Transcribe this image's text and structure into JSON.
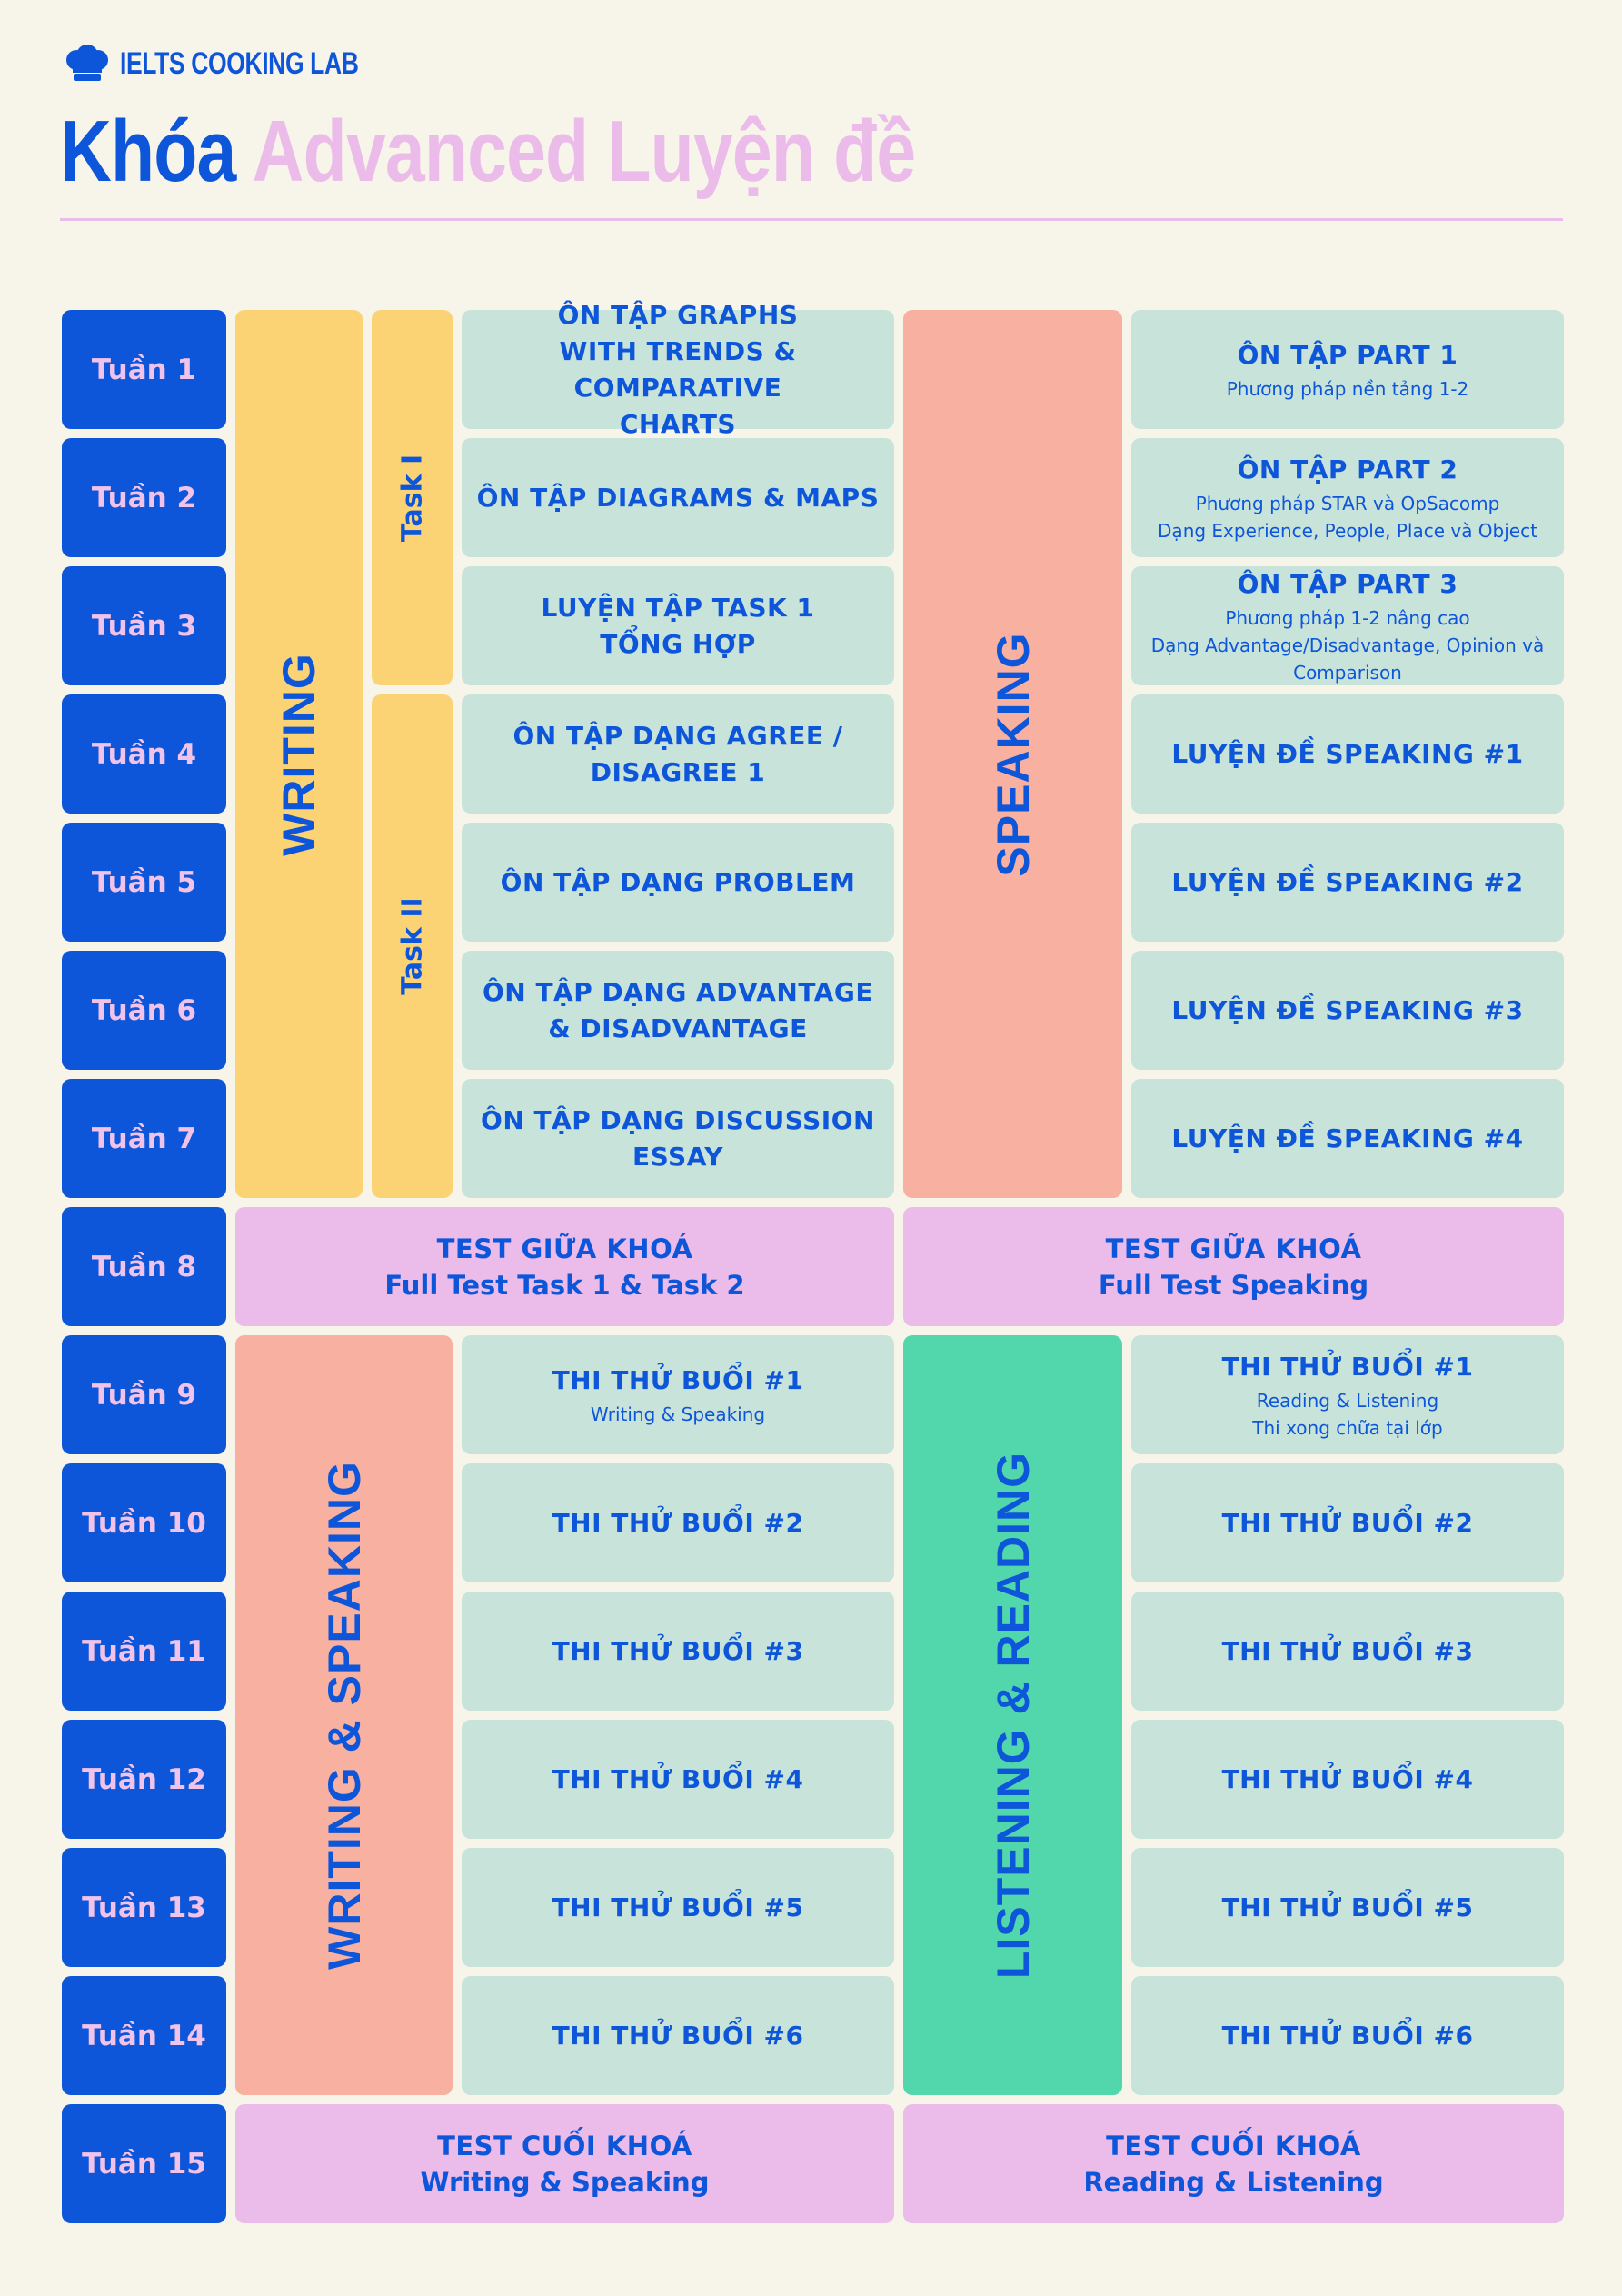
{
  "brand": {
    "icon": "chef-hat-icon",
    "name": "IELTS COOKING LAB"
  },
  "title": {
    "part1": "Khóa",
    "part2": "Advanced Luyện đề"
  },
  "colors": {
    "blue": "#0e56d9",
    "pink": "#ebbbea",
    "mint": "#c8e3da",
    "yellow": "#fbd375",
    "salmon": "#f8b0a0",
    "green": "#52d6ac",
    "background": "#f7f4ea"
  },
  "weeks": [
    "Tuần 1",
    "Tuần 2",
    "Tuần 3",
    "Tuần 4",
    "Tuần 5",
    "Tuần 6",
    "Tuần 7",
    "Tuần 8",
    "Tuần 9",
    "Tuần 10",
    "Tuần 11",
    "Tuần 12",
    "Tuần 13",
    "Tuần 14",
    "Tuần 15"
  ],
  "bands": {
    "writing": "WRITING",
    "task1": "Task I",
    "task2": "Task II",
    "speaking": "SPEAKING",
    "writing_speaking": "WRITING & SPEAKING",
    "listening_reading": "LISTENING & READING"
  },
  "writing_topics": [
    {
      "main": "ÔN TẬP GRAPHS\nWITH TRENDS & COMPARATIVE\nCHARTS"
    },
    {
      "main": "ÔN TẬP DIAGRAMS & MAPS"
    },
    {
      "main": "LUYỆN TẬP TASK 1\nTỔNG HỢP"
    },
    {
      "main": "ÔN TẬP DẠNG AGREE /\nDISAGREE 1"
    },
    {
      "main": "ÔN TẬP DẠNG PROBLEM"
    },
    {
      "main": "ÔN TẬP DẠNG ADVANTAGE\n& DISADVANTAGE"
    },
    {
      "main": "ÔN TẬP DẠNG DISCUSSION\nESSAY"
    }
  ],
  "speaking_topics": [
    {
      "main": "ÔN TẬP PART 1",
      "sub": "Phương pháp nền tảng 1-2"
    },
    {
      "main": "ÔN TẬP PART 2",
      "sub": "Phương pháp STAR và OpSacomp\nDạng Experience, People, Place và Object"
    },
    {
      "main": "ÔN TẬP PART 3",
      "sub": "Phương pháp 1-2 nâng cao\nDạng Advantage/Disadvantage, Opinion và\nComparison"
    },
    {
      "main": "LUYỆN ĐỀ SPEAKING #1"
    },
    {
      "main": "LUYỆN ĐỀ SPEAKING #2"
    },
    {
      "main": "LUYỆN ĐỀ SPEAKING #3"
    },
    {
      "main": "LUYỆN ĐỀ SPEAKING #4"
    }
  ],
  "midterm": {
    "left": {
      "main": "TEST GIỮA KHOÁ",
      "sub": "Full Test Task 1 & Task 2"
    },
    "right": {
      "main": "TEST GIỮA KHOÁ",
      "sub": "Full Test Speaking"
    }
  },
  "mock_ws": [
    {
      "main": "THI THỬ BUỔI #1",
      "sub": "Writing & Speaking"
    },
    {
      "main": "THI THỬ BUỔI #2"
    },
    {
      "main": "THI THỬ BUỔI #3"
    },
    {
      "main": "THI THỬ BUỔI #4"
    },
    {
      "main": "THI THỬ BUỔI #5"
    },
    {
      "main": "THI THỬ BUỔI #6"
    }
  ],
  "mock_lr": [
    {
      "main": "THI THỬ BUỔI #1",
      "sub": "Reading & Listening\nThi xong chữa tại lớp"
    },
    {
      "main": "THI THỬ BUỔI #2"
    },
    {
      "main": "THI THỬ BUỔI #3"
    },
    {
      "main": "THI THỬ BUỔI #4"
    },
    {
      "main": "THI THỬ BUỔI #5"
    },
    {
      "main": "THI THỬ BUỔI #6"
    }
  ],
  "final": {
    "left": {
      "main": "TEST CUỐI KHOÁ",
      "sub": "Writing & Speaking"
    },
    "right": {
      "main": "TEST CUỐI KHOÁ",
      "sub": "Reading & Listening"
    }
  }
}
